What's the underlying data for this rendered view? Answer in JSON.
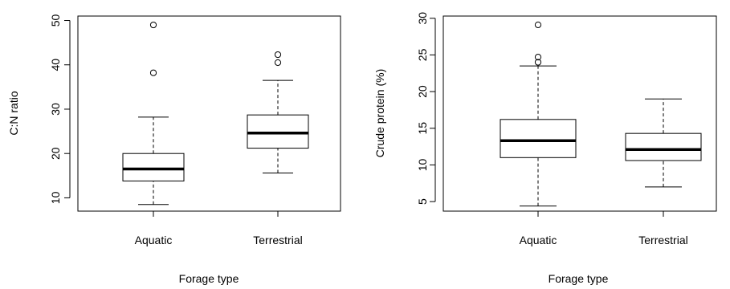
{
  "chart_data": [
    {
      "type": "box",
      "title": "",
      "xlabel": "Forage type",
      "ylabel": "C:N ratio",
      "ylim": [
        7,
        51
      ],
      "yticks": [
        10,
        20,
        30,
        40,
        50
      ],
      "grid": false,
      "categories": [
        "Aquatic",
        "Terrestrial"
      ],
      "boxes": [
        {
          "category": "Aquatic",
          "whisker_low": 8.5,
          "q1": 13.8,
          "median": 16.5,
          "q3": 20.0,
          "whisker_high": 28.2,
          "outliers": [
            38.2,
            49.0
          ]
        },
        {
          "category": "Terrestrial",
          "whisker_low": 15.6,
          "q1": 21.2,
          "median": 24.6,
          "q3": 28.7,
          "whisker_high": 36.5,
          "outliers": [
            40.5,
            42.3
          ]
        }
      ]
    },
    {
      "type": "box",
      "title": "",
      "xlabel": "Forage type",
      "ylabel": "Crude protein (%)",
      "ylim": [
        3.7,
        30.3
      ],
      "yticks": [
        5,
        10,
        15,
        20,
        25,
        30
      ],
      "grid": false,
      "categories": [
        "Aquatic",
        "Terrestrial"
      ],
      "boxes": [
        {
          "category": "Aquatic",
          "whisker_low": 4.4,
          "q1": 11.0,
          "median": 13.3,
          "q3": 16.2,
          "whisker_high": 23.5,
          "outliers": [
            24.0,
            24.7,
            29.1
          ]
        },
        {
          "category": "Terrestrial",
          "whisker_low": 7.0,
          "q1": 10.6,
          "median": 12.1,
          "q3": 14.3,
          "whisker_high": 19.0,
          "outliers": []
        }
      ]
    }
  ]
}
